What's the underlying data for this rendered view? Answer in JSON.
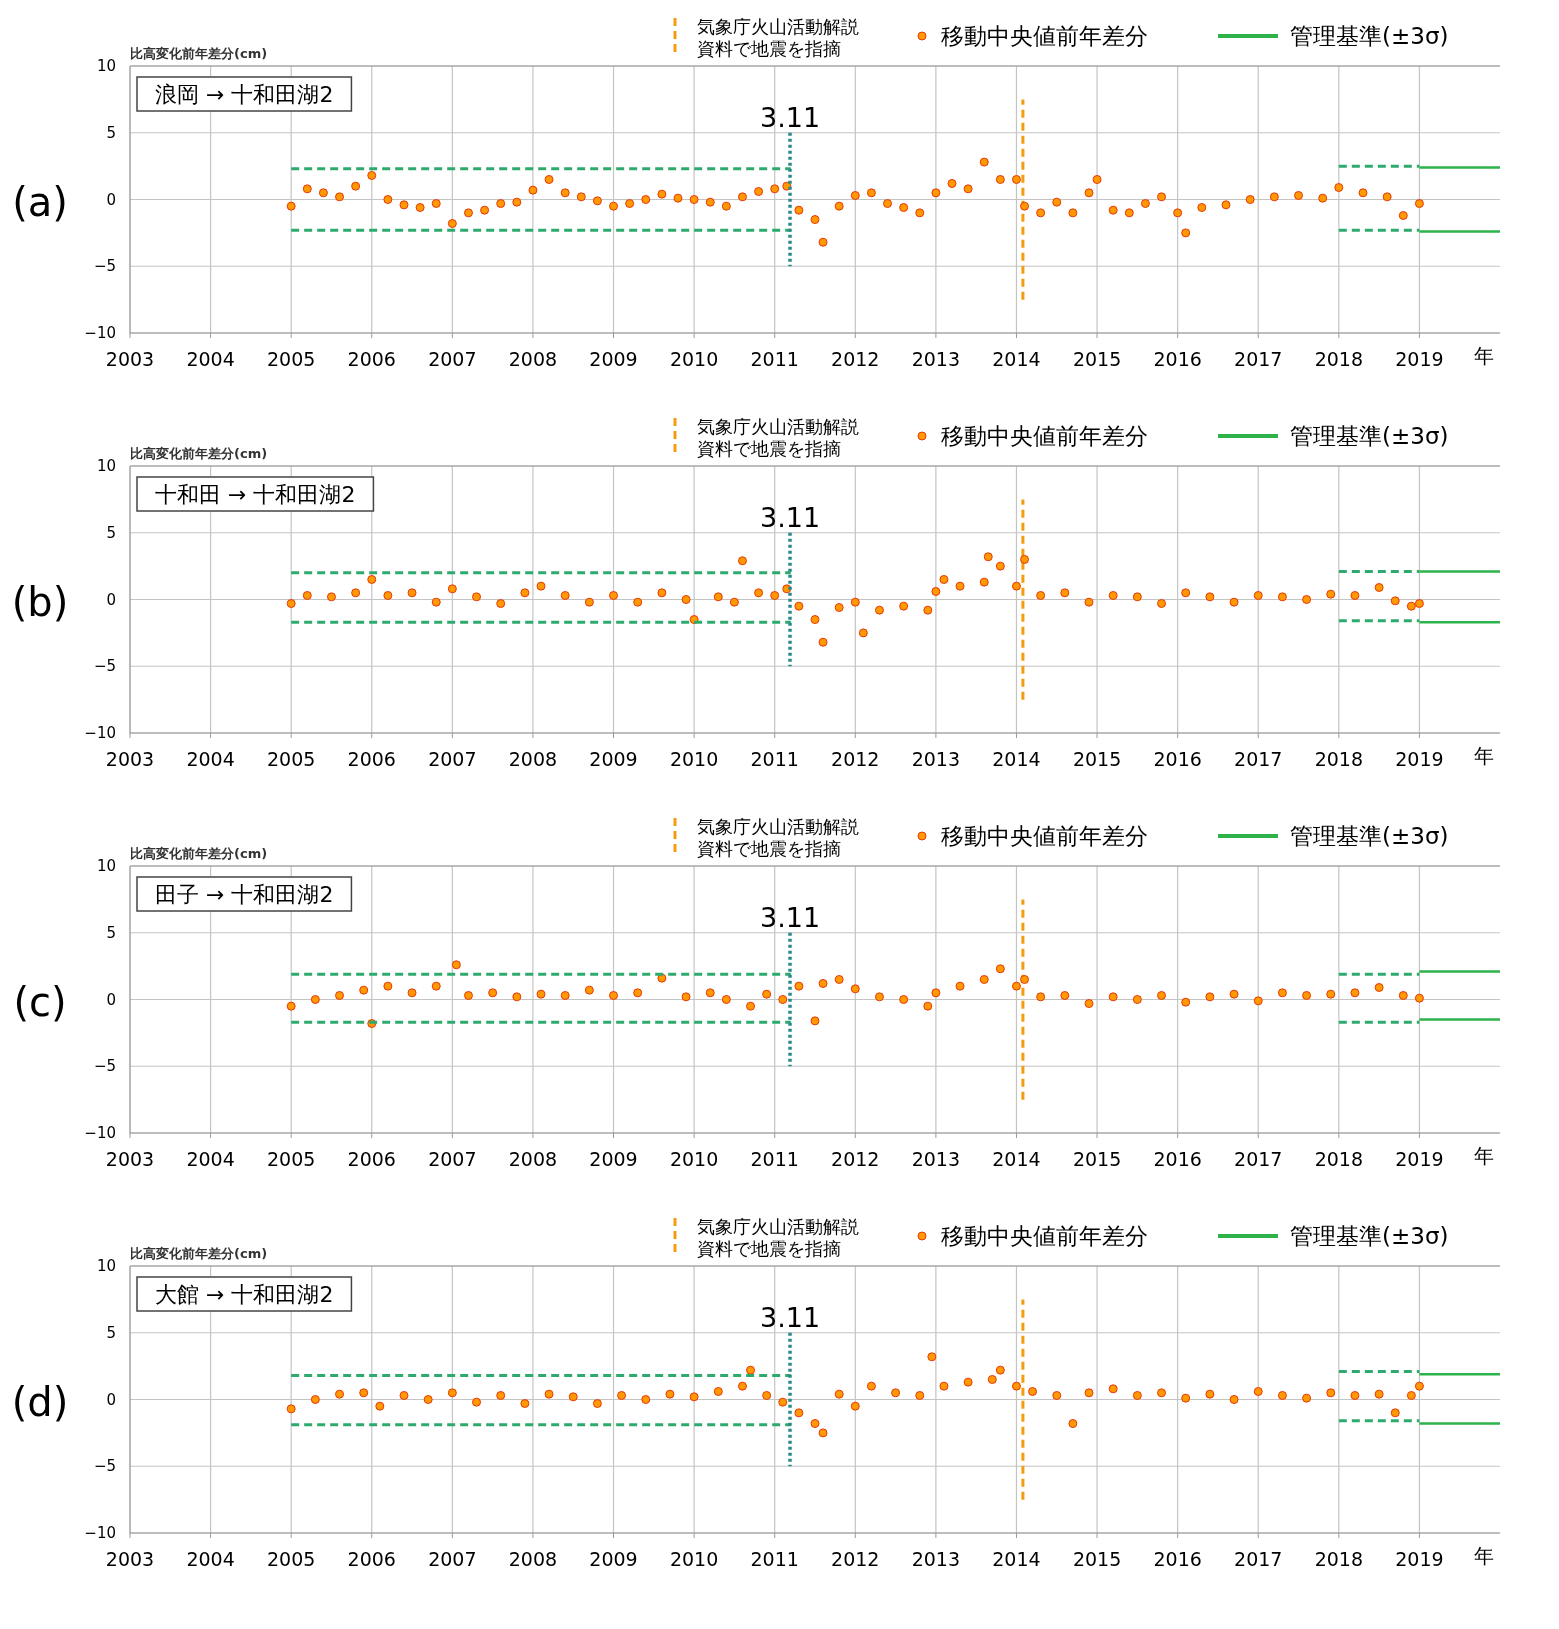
{
  "chart_data": [
    {
      "type": "scatter",
      "title": "(a)",
      "subtitle": "浪岡 → 十和田湖2",
      "ylabel": "比高変化前年差分(cm)",
      "xlabel": "年",
      "xlim": [
        2003,
        2020
      ],
      "xticks": [
        2003,
        2004,
        2005,
        2006,
        2007,
        2008,
        2009,
        2010,
        2011,
        2012,
        2013,
        2014,
        2015,
        2016,
        2017,
        2018,
        2019
      ],
      "ylim": [
        -10,
        10
      ],
      "yticks": [
        -10,
        -5,
        0,
        5,
        10
      ],
      "grid": true,
      "legend": "top",
      "annotations": [
        "3.11"
      ],
      "ref_lines": [
        {
          "axis": "x",
          "value": 2011.19,
          "color": "#2a8a8a",
          "line_style": "dotted"
        }
      ],
      "series": [
        {
          "name": "気象庁火山活動解説資料で地震を指摘",
          "type": "line",
          "color": "#f39c12",
          "line_style": "dashed",
          "x": [
            2014.08,
            2014.08
          ],
          "values": [
            -7.5,
            7.5
          ]
        },
        {
          "name": "移動中央値前年差分",
          "marker": "circle",
          "color": "#ff9900",
          "x": [
            2005.0,
            2005.2,
            2005.4,
            2005.6,
            2005.8,
            2006.0,
            2006.2,
            2006.4,
            2006.6,
            2006.8,
            2007.0,
            2007.2,
            2007.4,
            2007.6,
            2007.8,
            2008.0,
            2008.2,
            2008.4,
            2008.6,
            2008.8,
            2009.0,
            2009.2,
            2009.4,
            2009.6,
            2009.8,
            2010.0,
            2010.2,
            2010.4,
            2010.6,
            2010.8,
            2011.0,
            2011.15,
            2011.3,
            2011.5,
            2011.6,
            2011.8,
            2012.0,
            2012.2,
            2012.4,
            2012.6,
            2012.8,
            2013.0,
            2013.2,
            2013.4,
            2013.6,
            2013.8,
            2014.0,
            2014.1,
            2014.3,
            2014.5,
            2014.7,
            2014.9,
            2015.0,
            2015.2,
            2015.4,
            2015.6,
            2015.8,
            2016.0,
            2016.1,
            2016.3,
            2016.6,
            2016.9,
            2017.2,
            2017.5,
            2017.8,
            2018.0,
            2018.3,
            2018.6,
            2018.8,
            2019.0
          ],
          "values": [
            -0.5,
            0.8,
            0.5,
            0.2,
            1.0,
            1.8,
            0.0,
            -0.4,
            -0.6,
            -0.3,
            -1.8,
            -1.0,
            -0.8,
            -0.3,
            -0.2,
            0.7,
            1.5,
            0.5,
            0.2,
            -0.1,
            -0.5,
            -0.3,
            0.0,
            0.4,
            0.1,
            0.0,
            -0.2,
            -0.5,
            0.2,
            0.6,
            0.8,
            1.0,
            -0.8,
            -1.5,
            -3.2,
            -0.5,
            0.3,
            0.5,
            -0.3,
            -0.6,
            -1.0,
            0.5,
            1.2,
            0.8,
            2.8,
            1.5,
            1.5,
            -0.5,
            -1.0,
            -0.2,
            -1.0,
            0.5,
            1.5,
            -0.8,
            -1.0,
            -0.3,
            0.2,
            -1.0,
            -2.5,
            -0.6,
            -0.4,
            0.0,
            0.2,
            0.3,
            0.1,
            0.9,
            0.5,
            0.2,
            -1.2,
            -0.3
          ]
        },
        {
          "type": "line",
          "color": "#2eaa6e",
          "line_style": "dashed",
          "x": [
            2005,
            2011.2
          ],
          "values": [
            2.3,
            2.3
          ]
        },
        {
          "type": "line",
          "color": "#2eaa6e",
          "line_style": "dashed",
          "x": [
            2005,
            2011.2
          ],
          "values": [
            -2.3,
            -2.3
          ]
        },
        {
          "type": "line",
          "color": "#2eaa6e",
          "line_style": "dashed",
          "x": [
            2018,
            2019
          ],
          "values": [
            2.5,
            2.5
          ]
        },
        {
          "type": "line",
          "color": "#2eaa6e",
          "line_style": "dashed",
          "x": [
            2018,
            2019
          ],
          "values": [
            -2.3,
            -2.3
          ]
        },
        {
          "name": "管理基準(±3σ)",
          "type": "line",
          "color": "#2db34a",
          "line_style": "solid",
          "x": [
            2019,
            2020
          ],
          "values": [
            2.4,
            2.4
          ]
        },
        {
          "type": "line",
          "color": "#2db34a",
          "line_style": "solid",
          "x": [
            2019,
            2020
          ],
          "values": [
            -2.4,
            -2.4
          ]
        }
      ]
    },
    {
      "type": "scatter",
      "title": "(b)",
      "subtitle": "十和田 → 十和田湖2",
      "ylabel": "比高変化前年差分(cm)",
      "xlabel": "年",
      "xlim": [
        2003,
        2020
      ],
      "xticks": [
        2003,
        2004,
        2005,
        2006,
        2007,
        2008,
        2009,
        2010,
        2011,
        2012,
        2013,
        2014,
        2015,
        2016,
        2017,
        2018,
        2019
      ],
      "ylim": [
        -10,
        10
      ],
      "yticks": [
        -10,
        -5,
        0,
        5,
        10
      ],
      "grid": true,
      "legend": "top",
      "annotations": [
        "3.11"
      ],
      "ref_lines": [
        {
          "axis": "x",
          "value": 2011.19,
          "color": "#2a8a8a",
          "line_style": "dotted"
        }
      ],
      "series": [
        {
          "name": "気象庁火山活動解説資料で地震を指摘",
          "type": "line",
          "color": "#f39c12",
          "line_style": "dashed",
          "x": [
            2014.08,
            2014.08
          ],
          "values": [
            -7.5,
            7.5
          ]
        },
        {
          "name": "移動中央値前年差分",
          "marker": "circle",
          "color": "#ff9900",
          "x": [
            2005.0,
            2005.2,
            2005.5,
            2005.8,
            2006.0,
            2006.2,
            2006.5,
            2006.8,
            2007.0,
            2007.3,
            2007.6,
            2007.9,
            2008.1,
            2008.4,
            2008.7,
            2009.0,
            2009.3,
            2009.6,
            2009.9,
            2010.0,
            2010.3,
            2010.5,
            2010.6,
            2010.8,
            2011.0,
            2011.15,
            2011.3,
            2011.5,
            2011.6,
            2011.8,
            2012.0,
            2012.1,
            2012.3,
            2012.6,
            2012.9,
            2013.0,
            2013.1,
            2013.3,
            2013.6,
            2013.65,
            2013.8,
            2014.0,
            2014.1,
            2014.3,
            2014.6,
            2014.9,
            2015.2,
            2015.5,
            2015.8,
            2016.1,
            2016.4,
            2016.7,
            2017.0,
            2017.3,
            2017.6,
            2017.9,
            2018.2,
            2018.5,
            2018.7,
            2018.9,
            2019.0
          ],
          "values": [
            -0.3,
            0.3,
            0.2,
            0.5,
            1.5,
            0.3,
            0.5,
            -0.2,
            0.8,
            0.2,
            -0.3,
            0.5,
            1.0,
            0.3,
            -0.2,
            0.3,
            -0.2,
            0.5,
            0.0,
            -1.5,
            0.2,
            -0.2,
            2.9,
            0.5,
            0.3,
            0.8,
            -0.5,
            -1.5,
            -3.2,
            -0.6,
            -0.2,
            -2.5,
            -0.8,
            -0.5,
            -0.8,
            0.6,
            1.5,
            1.0,
            1.3,
            3.2,
            2.5,
            1.0,
            3.0,
            0.3,
            0.5,
            -0.2,
            0.3,
            0.2,
            -0.3,
            0.5,
            0.2,
            -0.2,
            0.3,
            0.2,
            0.0,
            0.4,
            0.3,
            0.9,
            -0.1,
            -0.5,
            -0.3
          ]
        },
        {
          "type": "line",
          "color": "#2eaa6e",
          "line_style": "dashed",
          "x": [
            2005,
            2011.2
          ],
          "values": [
            2.0,
            2.0
          ]
        },
        {
          "type": "line",
          "color": "#2eaa6e",
          "line_style": "dashed",
          "x": [
            2005,
            2011.2
          ],
          "values": [
            -1.7,
            -1.7
          ]
        },
        {
          "type": "line",
          "color": "#2eaa6e",
          "line_style": "dashed",
          "x": [
            2018,
            2019
          ],
          "values": [
            2.1,
            2.1
          ]
        },
        {
          "type": "line",
          "color": "#2eaa6e",
          "line_style": "dashed",
          "x": [
            2018,
            2019
          ],
          "values": [
            -1.6,
            -1.6
          ]
        },
        {
          "name": "管理基準(±3σ)",
          "type": "line",
          "color": "#2db34a",
          "line_style": "solid",
          "x": [
            2019,
            2020
          ],
          "values": [
            2.1,
            2.1
          ]
        },
        {
          "type": "line",
          "color": "#2db34a",
          "line_style": "solid",
          "x": [
            2019,
            2020
          ],
          "values": [
            -1.7,
            -1.7
          ]
        }
      ]
    },
    {
      "type": "scatter",
      "title": "(c)",
      "subtitle": "田子 → 十和田湖2",
      "ylabel": "比高変化前年差分(cm)",
      "xlabel": "年",
      "xlim": [
        2003,
        2020
      ],
      "xticks": [
        2003,
        2004,
        2005,
        2006,
        2007,
        2008,
        2009,
        2010,
        2011,
        2012,
        2013,
        2014,
        2015,
        2016,
        2017,
        2018,
        2019
      ],
      "ylim": [
        -10,
        10
      ],
      "yticks": [
        -10,
        -5,
        0,
        5,
        10
      ],
      "grid": true,
      "legend": "top",
      "annotations": [
        "3.11"
      ],
      "ref_lines": [
        {
          "axis": "x",
          "value": 2011.19,
          "color": "#2a8a8a",
          "line_style": "dotted"
        }
      ],
      "series": [
        {
          "name": "気象庁火山活動解説資料で地震を指摘",
          "type": "line",
          "color": "#f39c12",
          "line_style": "dashed",
          "x": [
            2014.08,
            2014.08
          ],
          "values": [
            -7.5,
            7.5
          ]
        },
        {
          "name": "移動中央値前年差分",
          "marker": "circle",
          "color": "#ff9900",
          "x": [
            2005.0,
            2005.3,
            2005.6,
            2005.9,
            2006.0,
            2006.2,
            2006.5,
            2006.8,
            2007.05,
            2007.2,
            2007.5,
            2007.8,
            2008.1,
            2008.4,
            2008.7,
            2009.0,
            2009.3,
            2009.6,
            2009.9,
            2010.2,
            2010.4,
            2010.7,
            2010.9,
            2011.1,
            2011.3,
            2011.5,
            2011.6,
            2011.8,
            2012.0,
            2012.3,
            2012.6,
            2012.9,
            2013.0,
            2013.3,
            2013.6,
            2013.8,
            2014.0,
            2014.1,
            2014.3,
            2014.6,
            2014.9,
            2015.2,
            2015.5,
            2015.8,
            2016.1,
            2016.4,
            2016.7,
            2017.0,
            2017.3,
            2017.6,
            2017.9,
            2018.2,
            2018.5,
            2018.8,
            2019.0
          ],
          "values": [
            -0.5,
            0.0,
            0.3,
            0.7,
            -1.8,
            1.0,
            0.5,
            1.0,
            2.6,
            0.3,
            0.5,
            0.2,
            0.4,
            0.3,
            0.7,
            0.3,
            0.5,
            1.6,
            0.2,
            0.5,
            0.0,
            -0.5,
            0.4,
            0.0,
            1.0,
            -1.6,
            1.2,
            1.5,
            0.8,
            0.2,
            0.0,
            -0.5,
            0.5,
            1.0,
            1.5,
            2.3,
            1.0,
            1.5,
            0.2,
            0.3,
            -0.3,
            0.2,
            0.0,
            0.3,
            -0.2,
            0.2,
            0.4,
            -0.1,
            0.5,
            0.3,
            0.4,
            0.5,
            0.9,
            0.3,
            0.1
          ]
        },
        {
          "type": "line",
          "color": "#2eaa6e",
          "line_style": "dashed",
          "x": [
            2005,
            2011.2
          ],
          "values": [
            1.9,
            1.9
          ]
        },
        {
          "type": "line",
          "color": "#2eaa6e",
          "line_style": "dashed",
          "x": [
            2005,
            2011.2
          ],
          "values": [
            -1.7,
            -1.7
          ]
        },
        {
          "type": "line",
          "color": "#2eaa6e",
          "line_style": "dashed",
          "x": [
            2018,
            2019
          ],
          "values": [
            1.9,
            1.9
          ]
        },
        {
          "type": "line",
          "color": "#2eaa6e",
          "line_style": "dashed",
          "x": [
            2018,
            2019
          ],
          "values": [
            -1.7,
            -1.7
          ]
        },
        {
          "name": "管理基準(±3σ)",
          "type": "line",
          "color": "#2db34a",
          "line_style": "solid",
          "x": [
            2019,
            2020
          ],
          "values": [
            2.1,
            2.1
          ]
        },
        {
          "type": "line",
          "color": "#2db34a",
          "line_style": "solid",
          "x": [
            2019,
            2020
          ],
          "values": [
            -1.5,
            -1.5
          ]
        }
      ]
    },
    {
      "type": "scatter",
      "title": "(d)",
      "subtitle": "大館 → 十和田湖2",
      "ylabel": "比高変化前年差分(cm)",
      "xlabel": "年",
      "xlim": [
        2003,
        2020
      ],
      "xticks": [
        2003,
        2004,
        2005,
        2006,
        2007,
        2008,
        2009,
        2010,
        2011,
        2012,
        2013,
        2014,
        2015,
        2016,
        2017,
        2018,
        2019
      ],
      "ylim": [
        -10,
        10
      ],
      "yticks": [
        -10,
        -5,
        0,
        5,
        10
      ],
      "grid": true,
      "legend": "top",
      "annotations": [
        "3.11"
      ],
      "ref_lines": [
        {
          "axis": "x",
          "value": 2011.19,
          "color": "#2a8a8a",
          "line_style": "dotted"
        }
      ],
      "series": [
        {
          "name": "気象庁火山活動解説資料で地震を指摘",
          "type": "line",
          "color": "#f39c12",
          "line_style": "dashed",
          "x": [
            2014.08,
            2014.08
          ],
          "values": [
            -7.5,
            7.5
          ]
        },
        {
          "name": "移動中央値前年差分",
          "marker": "circle",
          "color": "#ff9900",
          "x": [
            2005.0,
            2005.3,
            2005.6,
            2005.9,
            2006.1,
            2006.4,
            2006.7,
            2007.0,
            2007.3,
            2007.6,
            2007.9,
            2008.2,
            2008.5,
            2008.8,
            2009.1,
            2009.4,
            2009.7,
            2010.0,
            2010.3,
            2010.6,
            2010.7,
            2010.9,
            2011.1,
            2011.3,
            2011.5,
            2011.6,
            2011.8,
            2012.0,
            2012.2,
            2012.5,
            2012.8,
            2012.95,
            2013.1,
            2013.4,
            2013.7,
            2013.8,
            2014.0,
            2014.2,
            2014.5,
            2014.7,
            2014.9,
            2015.2,
            2015.5,
            2015.8,
            2016.1,
            2016.4,
            2016.7,
            2017.0,
            2017.3,
            2017.6,
            2017.9,
            2018.2,
            2018.5,
            2018.7,
            2018.9,
            2019.0
          ],
          "values": [
            -0.7,
            0.0,
            0.4,
            0.5,
            -0.5,
            0.3,
            0.0,
            0.5,
            -0.2,
            0.3,
            -0.3,
            0.4,
            0.2,
            -0.3,
            0.3,
            0.0,
            0.4,
            0.2,
            0.6,
            1.0,
            2.2,
            0.3,
            -0.2,
            -1.0,
            -1.8,
            -2.5,
            0.4,
            -0.5,
            1.0,
            0.5,
            0.3,
            3.2,
            1.0,
            1.3,
            1.5,
            2.2,
            1.0,
            0.6,
            0.3,
            -1.8,
            0.5,
            0.8,
            0.3,
            0.5,
            0.1,
            0.4,
            0.0,
            0.6,
            0.3,
            0.1,
            0.5,
            0.3,
            0.4,
            -1.0,
            0.3,
            1.0
          ]
        },
        {
          "type": "line",
          "color": "#2eaa6e",
          "line_style": "dashed",
          "x": [
            2005,
            2011.2
          ],
          "values": [
            1.8,
            1.8
          ]
        },
        {
          "type": "line",
          "color": "#2eaa6e",
          "line_style": "dashed",
          "x": [
            2005,
            2011.2
          ],
          "values": [
            -1.9,
            -1.9
          ]
        },
        {
          "type": "line",
          "color": "#2eaa6e",
          "line_style": "dashed",
          "x": [
            2018,
            2019
          ],
          "values": [
            2.1,
            2.1
          ]
        },
        {
          "type": "line",
          "color": "#2eaa6e",
          "line_style": "dashed",
          "x": [
            2018,
            2019
          ],
          "values": [
            -1.6,
            -1.6
          ]
        },
        {
          "name": "管理基準(±3σ)",
          "type": "line",
          "color": "#2db34a",
          "line_style": "solid",
          "x": [
            2019,
            2020
          ],
          "values": [
            1.9,
            1.9
          ]
        },
        {
          "type": "line",
          "color": "#2db34a",
          "line_style": "solid",
          "x": [
            2019,
            2020
          ],
          "values": [
            -1.8,
            -1.8
          ]
        }
      ]
    }
  ]
}
